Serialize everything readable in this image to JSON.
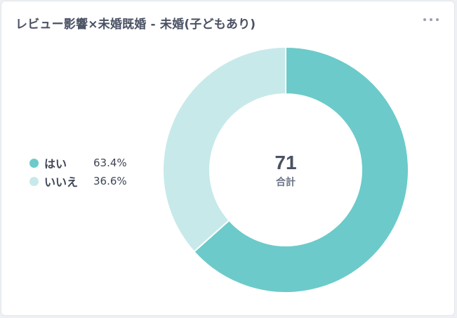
{
  "header": {
    "title": "レビュー影響×未婚既婚 - 未婚(子どもあり)"
  },
  "center": {
    "total": "71",
    "total_label": "合計"
  },
  "legend": [
    {
      "label": "はい",
      "value": "63.4%"
    },
    {
      "label": "いいえ",
      "value": "36.6%"
    }
  ],
  "colors": {
    "yes": "#6ccaca",
    "no": "#c7e9ea",
    "title": "#4a5163",
    "center_number": "#4a5163",
    "center_label": "#6b7385"
  },
  "chart_data": {
    "type": "pie",
    "donut": true,
    "categories": [
      "はい",
      "いいえ"
    ],
    "values": [
      63.4,
      36.6
    ],
    "total": 71,
    "legend_position": "left"
  }
}
